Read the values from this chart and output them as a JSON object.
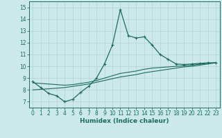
{
  "xlabel": "Humidex (Indice chaleur)",
  "ylabel": "",
  "background_color": "#cce9e9",
  "grid_color": "#b8d4d4",
  "line_color": "#1a6b5e",
  "xlim": [
    -0.5,
    23.5
  ],
  "ylim": [
    6.5,
    15.5
  ],
  "xticks": [
    0,
    1,
    2,
    3,
    4,
    5,
    6,
    7,
    8,
    9,
    10,
    11,
    12,
    13,
    14,
    15,
    16,
    17,
    18,
    19,
    20,
    21,
    22,
    23
  ],
  "yticks": [
    7,
    8,
    9,
    10,
    11,
    12,
    13,
    14,
    15
  ],
  "series1_x": [
    0,
    1,
    2,
    3,
    4,
    5,
    6,
    7,
    8,
    9,
    10,
    11,
    12,
    13,
    14,
    15,
    16,
    17,
    18,
    19,
    20,
    21,
    22,
    23
  ],
  "series1_y": [
    8.7,
    8.2,
    7.7,
    7.5,
    7.0,
    7.2,
    7.8,
    8.3,
    9.0,
    10.2,
    11.8,
    14.8,
    12.6,
    12.4,
    12.5,
    11.8,
    11.0,
    10.6,
    10.2,
    10.15,
    10.2,
    10.25,
    10.3,
    10.3
  ],
  "series2_x": [
    0,
    1,
    2,
    3,
    4,
    5,
    6,
    7,
    8,
    9,
    10,
    11,
    12,
    13,
    14,
    15,
    16,
    17,
    18,
    19,
    20,
    21,
    22,
    23
  ],
  "series2_y": [
    8.0,
    8.05,
    8.1,
    8.15,
    8.2,
    8.3,
    8.4,
    8.5,
    8.65,
    8.8,
    8.95,
    9.1,
    9.2,
    9.3,
    9.45,
    9.55,
    9.65,
    9.75,
    9.85,
    9.95,
    10.0,
    10.1,
    10.2,
    10.3
  ],
  "series3_x": [
    0,
    1,
    2,
    3,
    4,
    5,
    6,
    7,
    8,
    9,
    10,
    11,
    12,
    13,
    14,
    15,
    16,
    17,
    18,
    19,
    20,
    21,
    22,
    23
  ],
  "series3_y": [
    8.6,
    8.55,
    8.5,
    8.45,
    8.4,
    8.45,
    8.55,
    8.65,
    8.8,
    9.0,
    9.2,
    9.4,
    9.5,
    9.6,
    9.75,
    9.85,
    9.9,
    9.95,
    10.0,
    10.05,
    10.1,
    10.18,
    10.25,
    10.3
  ]
}
